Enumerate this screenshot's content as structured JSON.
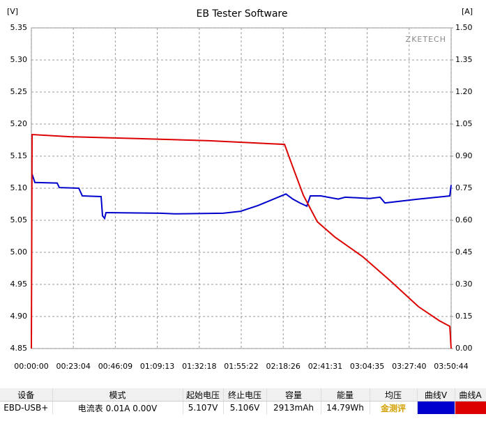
{
  "chart_data": {
    "type": "line",
    "title": "EB Tester Software",
    "y_label": "[V]",
    "y2_label": "[A]",
    "watermark": "ZKETECH",
    "xlim": [
      0,
      13844
    ],
    "xticks": [
      {
        "value": 0,
        "label": "00:00:00"
      },
      {
        "value": 1384.4,
        "label": "00:23:04"
      },
      {
        "value": 2768.8,
        "label": "00:46:09"
      },
      {
        "value": 4153.2,
        "label": "01:09:13"
      },
      {
        "value": 5537.6,
        "label": "01:32:18"
      },
      {
        "value": 6922,
        "label": "01:55:22"
      },
      {
        "value": 8306.4,
        "label": "02:18:26"
      },
      {
        "value": 9690.8,
        "label": "02:41:31"
      },
      {
        "value": 11075.2,
        "label": "03:04:35"
      },
      {
        "value": 12459.6,
        "label": "03:27:40"
      },
      {
        "value": 13844,
        "label": "03:50:44"
      }
    ],
    "ylim": [
      4.85,
      5.35
    ],
    "yticks": [
      5.35,
      {
        "value": 5.3,
        "label": "5.30"
      },
      5.25,
      {
        "value": 5.2,
        "label": "5.20"
      },
      5.15,
      {
        "value": 5.1,
        "label": "5.10"
      },
      5.05,
      {
        "value": 5,
        "label": "5.00"
      },
      4.95,
      {
        "value": 4.9,
        "label": "4.90"
      },
      4.85
    ],
    "y2lim": [
      0,
      1.5
    ],
    "y2ticks": [
      {
        "value": 1.5,
        "label": "1.50"
      },
      1.35,
      {
        "value": 1.2,
        "label": "1.20"
      },
      1.05,
      {
        "value": 0.9,
        "label": "0.90"
      },
      0.75,
      {
        "value": 0.6,
        "label": "0.60"
      },
      0.45,
      {
        "value": 0.3,
        "label": "0.30"
      },
      0.15,
      {
        "value": 0,
        "label": "0.00"
      }
    ],
    "grid": true,
    "series": [
      {
        "name": "曲线V",
        "color": "#0000cc",
        "x": [
          23,
          115,
          851,
          920,
          1564,
          1679,
          2300,
          2346,
          2415,
          2461,
          4255,
          4715,
          6325,
          6900,
          7475,
          7935,
          8395,
          8625,
          8855,
          9085,
          9200,
          9545,
          10120,
          10350,
          11155,
          11500,
          11661,
          12765,
          13800,
          13844
        ],
        "values": [
          5.122,
          5.109,
          5.108,
          5.101,
          5.1,
          5.088,
          5.087,
          5.057,
          5.053,
          5.062,
          5.061,
          5.06,
          5.061,
          5.064,
          5.073,
          5.082,
          5.091,
          5.083,
          5.077,
          5.072,
          5.088,
          5.088,
          5.083,
          5.086,
          5.084,
          5.086,
          5.077,
          5.083,
          5.088,
          5.105
        ]
      },
      {
        "name": "曲线A",
        "color": "#dd0000",
        "axis": "y2",
        "x": [
          0,
          23,
          1265,
          3565,
          5865,
          8349,
          8625,
          8970,
          9430,
          10005,
          10925,
          11845,
          12765,
          13455,
          13800,
          13844
        ],
        "values": [
          0,
          1.001,
          0.991,
          0.982,
          0.972,
          0.955,
          0.848,
          0.717,
          0.593,
          0.522,
          0.43,
          0.316,
          0.196,
          0.13,
          0.104,
          0
        ]
      }
    ]
  },
  "table": {
    "headers": [
      "设备",
      "模式",
      "起始电压",
      "终止电压",
      "容量",
      "能量",
      "均压",
      "曲线V",
      "曲线A"
    ],
    "row": [
      "EBD-USB+",
      "电流表 0.01A 0.00V",
      "5.107V",
      "5.106V",
      "2913mAh",
      "14.79Wh"
    ],
    "logo": "金测评"
  }
}
